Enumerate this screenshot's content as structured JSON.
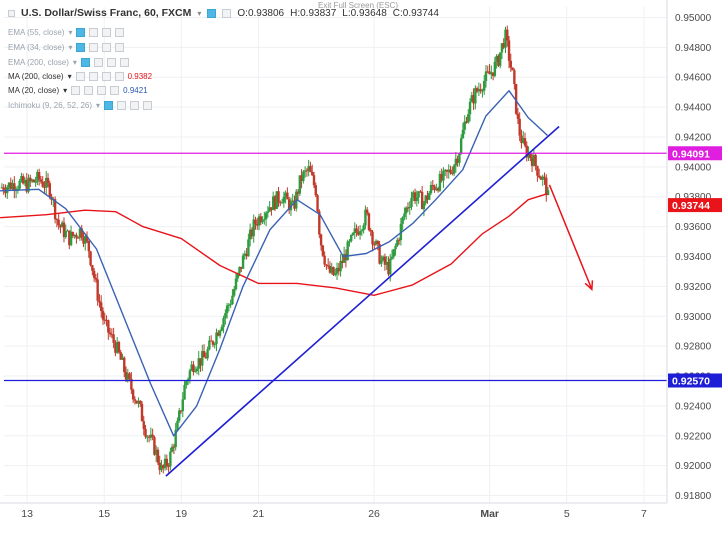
{
  "header": {
    "title": "U.S. Dollar/Swiss Franc, 60, FXCM",
    "open": "O:0.93806",
    "high": "H:0.93837",
    "low": "L:0.93648",
    "close": "C:0.93744",
    "exit_fullscreen": "Exit Full Screen (ESC)"
  },
  "indicators": [
    {
      "label": "EMA (55, close)",
      "value": "",
      "color": "#9aa3ad"
    },
    {
      "label": "EMA (34, close)",
      "value": "",
      "color": "#9aa3ad"
    },
    {
      "label": "EMA (200, close)",
      "value": "",
      "color": "#9aa3ad"
    },
    {
      "label": "MA (200, close)",
      "value": "0.9382",
      "color": "#e8141a"
    },
    {
      "label": "MA (20, close)",
      "value": "0.9421",
      "color": "#2b57b8"
    },
    {
      "label": "Ichimoku (9, 26, 52, 26)",
      "value": "",
      "color": "#9aa3ad"
    }
  ],
  "colors": {
    "up": "#2e9b3f",
    "down": "#c0392b",
    "ma200": "#e8141a",
    "ma20": "#3a62b3",
    "trendline": "#1e1ed6",
    "resistance": "#e01ee0",
    "support": "#1e1ed6",
    "arrow": "#e8141a"
  },
  "chart_data": {
    "type": "candlestick",
    "symbol": "U.S. Dollar/Swiss Franc",
    "timeframe": "60",
    "ylim": [
      0.9175,
      0.9507
    ],
    "y_ticks": [
      "0.95000",
      "0.94800",
      "0.94600",
      "0.94400",
      "0.94200",
      "0.94000",
      "0.93800",
      "0.93600",
      "0.93400",
      "0.93200",
      "0.93000",
      "0.92800",
      "0.92600",
      "0.92400",
      "0.92200",
      "0.92000",
      "0.91800"
    ],
    "x_ticks": [
      {
        "label": "13",
        "pos": 0.0
      },
      {
        "label": "15",
        "pos": 2.0
      },
      {
        "label": "19",
        "pos": 4.0
      },
      {
        "label": "21",
        "pos": 6.0
      },
      {
        "label": "26",
        "pos": 9.0
      },
      {
        "label": "Mar",
        "pos": 12.0
      },
      {
        "label": "5",
        "pos": 14.0
      },
      {
        "label": "7",
        "pos": 16.0
      }
    ],
    "xlim": [
      -0.6,
      16.6
    ],
    "price_path": [
      [
        -0.7,
        0.9386
      ],
      [
        -0.3,
        0.9389
      ],
      [
        0.0,
        0.9388
      ],
      [
        0.3,
        0.9392
      ],
      [
        0.6,
        0.9385
      ],
      [
        0.8,
        0.9362
      ],
      [
        1.1,
        0.9352
      ],
      [
        1.4,
        0.9358
      ],
      [
        1.6,
        0.9345
      ],
      [
        1.8,
        0.9318
      ],
      [
        2.0,
        0.9295
      ],
      [
        2.3,
        0.928
      ],
      [
        2.6,
        0.9258
      ],
      [
        2.9,
        0.924
      ],
      [
        3.1,
        0.9222
      ],
      [
        3.3,
        0.9212
      ],
      [
        3.5,
        0.9196
      ],
      [
        3.7,
        0.9205
      ],
      [
        3.9,
        0.9226
      ],
      [
        4.1,
        0.9255
      ],
      [
        4.3,
        0.9268
      ],
      [
        4.6,
        0.9272
      ],
      [
        4.9,
        0.9288
      ],
      [
        5.1,
        0.93
      ],
      [
        5.3,
        0.9312
      ],
      [
        5.6,
        0.9338
      ],
      [
        5.9,
        0.9362
      ],
      [
        6.2,
        0.9372
      ],
      [
        6.6,
        0.9381
      ],
      [
        6.9,
        0.9372
      ],
      [
        7.1,
        0.9392
      ],
      [
        7.3,
        0.9398
      ],
      [
        7.5,
        0.9384
      ],
      [
        7.6,
        0.9352
      ],
      [
        7.8,
        0.933
      ],
      [
        8.0,
        0.9327
      ],
      [
        8.2,
        0.9338
      ],
      [
        8.5,
        0.9355
      ],
      [
        8.8,
        0.9368
      ],
      [
        9.0,
        0.935
      ],
      [
        9.2,
        0.9336
      ],
      [
        9.4,
        0.9332
      ],
      [
        9.6,
        0.935
      ],
      [
        9.8,
        0.937
      ],
      [
        10.0,
        0.9382
      ],
      [
        10.3,
        0.9376
      ],
      [
        10.5,
        0.9386
      ],
      [
        10.8,
        0.9392
      ],
      [
        11.0,
        0.9398
      ],
      [
        11.2,
        0.941
      ],
      [
        11.4,
        0.9435
      ],
      [
        11.6,
        0.9448
      ],
      [
        11.8,
        0.9456
      ],
      [
        12.0,
        0.9462
      ],
      [
        12.2,
        0.947
      ],
      [
        12.4,
        0.9488
      ],
      [
        12.6,
        0.946
      ],
      [
        12.75,
        0.9425
      ],
      [
        12.9,
        0.9412
      ],
      [
        13.1,
        0.9406
      ],
      [
        13.3,
        0.9395
      ],
      [
        13.45,
        0.9388
      ],
      [
        13.55,
        0.9374
      ]
    ],
    "series": [
      {
        "name": "MA (200, close)",
        "x": [
          -0.7,
          0.5,
          1.5,
          2.3,
          3.0,
          4.0,
          5.0,
          6.0,
          7.0,
          8.0,
          9.0,
          10.0,
          11.0,
          11.8,
          12.5,
          13.0,
          13.5
        ],
        "y": [
          0.9366,
          0.9368,
          0.9371,
          0.937,
          0.936,
          0.9352,
          0.9334,
          0.9322,
          0.9322,
          0.9319,
          0.9314,
          0.9321,
          0.9335,
          0.9355,
          0.9367,
          0.9378,
          0.9382
        ]
      },
      {
        "name": "MA (20, close)",
        "x": [
          -0.7,
          0.3,
          1.0,
          1.8,
          2.5,
          3.2,
          3.8,
          4.4,
          5.0,
          5.6,
          6.3,
          7.0,
          7.6,
          8.2,
          8.8,
          9.4,
          10.0,
          10.6,
          11.3,
          11.9,
          12.5,
          13.0,
          13.5
        ],
        "y": [
          0.9384,
          0.9385,
          0.9372,
          0.9345,
          0.93,
          0.9255,
          0.922,
          0.924,
          0.9278,
          0.932,
          0.9358,
          0.9378,
          0.9368,
          0.934,
          0.9342,
          0.935,
          0.9362,
          0.9378,
          0.9398,
          0.9434,
          0.9451,
          0.9433,
          0.9421
        ]
      }
    ],
    "annotations": {
      "current_price": "0.93744",
      "resistance": "0.94091",
      "support": "0.92570",
      "trendline": {
        "x": [
          3.6,
          13.8
        ],
        "y": [
          0.9193,
          0.9427
        ]
      },
      "projection_arrow": {
        "x": [
          13.55,
          14.65
        ],
        "y": [
          0.9388,
          0.9318
        ]
      }
    }
  }
}
